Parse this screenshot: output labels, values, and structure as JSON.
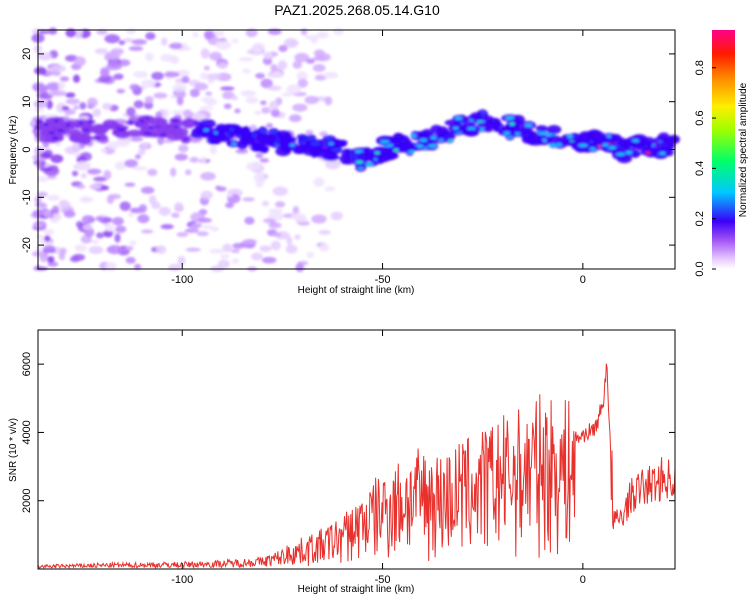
{
  "title": "PAZ1.2025.268.05.14.G10",
  "chart_data": [
    {
      "type": "heatmap",
      "title": "PAZ1.2025.268.05.14.G10",
      "xlabel": "Height of straight line (km)",
      "ylabel": "Frequency (Hz)",
      "xlim": [
        -136,
        23
      ],
      "ylim": [
        -25,
        25
      ],
      "x_ticks": [
        -100,
        -50,
        0
      ],
      "x_tick_labels": [
        "-100",
        "-50",
        "0"
      ],
      "y_ticks": [
        20,
        10,
        0,
        -10,
        -20
      ],
      "y_tick_labels": [
        "20",
        "10",
        "0",
        "-10",
        "-20"
      ],
      "ridge": {
        "x": [
          -136,
          -120,
          -110,
          -100,
          -90,
          -80,
          -70,
          -60,
          -55,
          -50,
          -45,
          -40,
          -35,
          -30,
          -25,
          -20,
          -15,
          -10,
          -5,
          0,
          5,
          10,
          15,
          20,
          23
        ],
        "frequency": [
          4,
          4,
          5,
          4,
          3,
          2,
          1,
          0,
          -2,
          0,
          1,
          2,
          3,
          5,
          6,
          5,
          4,
          3,
          2,
          1,
          2,
          0,
          1,
          1,
          1
        ]
      },
      "colorbar": {
        "label": "Normalized spectral amplitude",
        "range": [
          0,
          0.95
        ],
        "ticks": [
          0.0,
          0.2,
          0.4,
          0.6,
          0.8
        ],
        "tick_labels": [
          "0.0",
          "0.2",
          "0.4",
          "0.6",
          "0.8"
        ]
      }
    },
    {
      "type": "line",
      "xlabel": "Height of straight line (km)",
      "ylabel": "SNR (10 * v/v)",
      "xlim": [
        -136,
        23
      ],
      "ylim": [
        0,
        7000
      ],
      "x_ticks": [
        -100,
        -50,
        0
      ],
      "x_tick_labels": [
        "-100",
        "-50",
        "0"
      ],
      "y_ticks": [
        2000,
        4000,
        6000
      ],
      "y_tick_labels": [
        "2000",
        "4000",
        "6000"
      ],
      "color": "#e8312c",
      "envelope": {
        "x": [
          -136,
          -120,
          -100,
          -90,
          -80,
          -75,
          -70,
          -65,
          -60,
          -55,
          -50,
          -45,
          -40,
          -35,
          -30,
          -25,
          -20,
          -15,
          -10,
          -5,
          0,
          3,
          5,
          6,
          7,
          8,
          10,
          12,
          15,
          18,
          20,
          23
        ],
        "snr": [
          100,
          150,
          180,
          220,
          300,
          500,
          700,
          900,
          1200,
          1700,
          2200,
          2500,
          2700,
          2600,
          2900,
          3100,
          3400,
          3600,
          3900,
          3700,
          4000,
          4200,
          4900,
          6200,
          3200,
          1500,
          1700,
          2300,
          2600,
          2700,
          2900,
          2800
        ]
      }
    }
  ]
}
